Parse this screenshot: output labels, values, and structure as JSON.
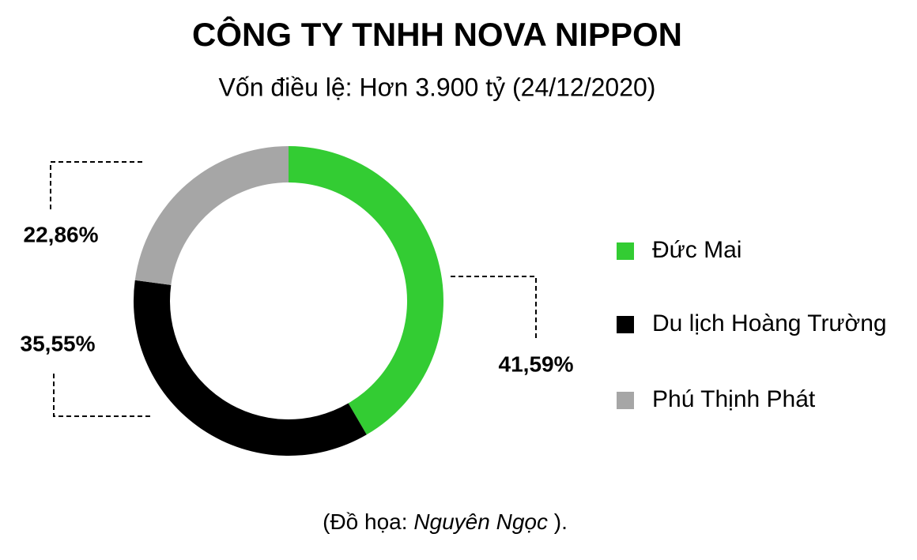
{
  "chart_data": {
    "type": "donut",
    "title": "CÔNG TY TNHH NOVA NIPPON",
    "subtitle": "Vốn điều lệ: Hơn 3.900 tỷ (24/12/2020)",
    "categories": [
      "Đức Mai",
      "Du lịch Hoàng Trường",
      "Phú Thịnh Phát"
    ],
    "values": [
      41.59,
      35.55,
      22.86
    ],
    "value_labels": [
      "41,59%",
      "35,55%",
      "22,86%"
    ],
    "colors": [
      "#33cc33",
      "#000000",
      "#a6a6a6"
    ],
    "legend": "right",
    "credit": {
      "prefix": "(Đồ họa: ",
      "author": "Nguyên Ngọc",
      "suffix": " )."
    }
  }
}
